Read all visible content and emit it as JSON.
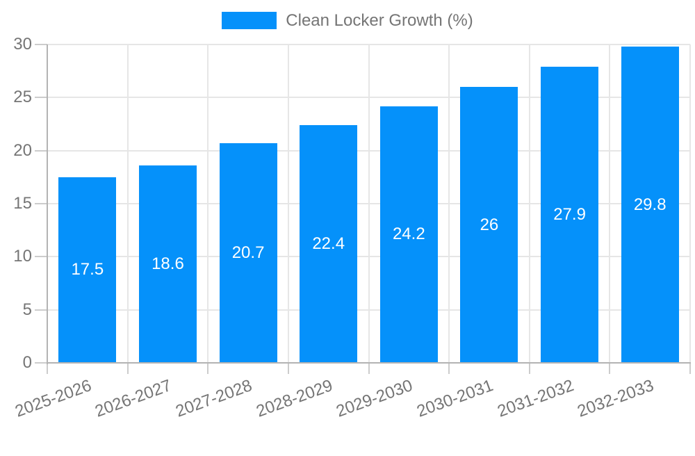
{
  "legend": {
    "label": "Clean Locker Growth (%)"
  },
  "colors": {
    "bar": "#0591fa",
    "axis_text": "#757575",
    "grid_line": "#e6e6e6",
    "axis_line": "#b3b3b3",
    "tick_line": "#cccccc",
    "bar_label": "#ffffff",
    "background": "#ffffff"
  },
  "chart_data": {
    "type": "bar",
    "title": "Clean Locker Growth (%)",
    "categories": [
      "2025-2026",
      "2026-2027",
      "2027-2028",
      "2028-2029",
      "2029-2030",
      "2030-2031",
      "2031-2032",
      "2032-2033"
    ],
    "values": [
      17.5,
      18.6,
      20.7,
      22.4,
      24.2,
      26,
      27.9,
      29.8
    ],
    "bar_value_labels": [
      "17.5",
      "18.6",
      "20.7",
      "22.4",
      "24.2",
      "26",
      "27.9",
      "29.8"
    ],
    "xlabel": "",
    "ylabel": "",
    "ylim": [
      0,
      30
    ],
    "yticks": [
      0,
      5,
      10,
      15,
      20,
      25,
      30
    ],
    "grid": true,
    "legend_position": "top-center",
    "bar_labels_visible": true,
    "bar_label_position": "middle-center",
    "x_label_rotation_deg": -20
  }
}
